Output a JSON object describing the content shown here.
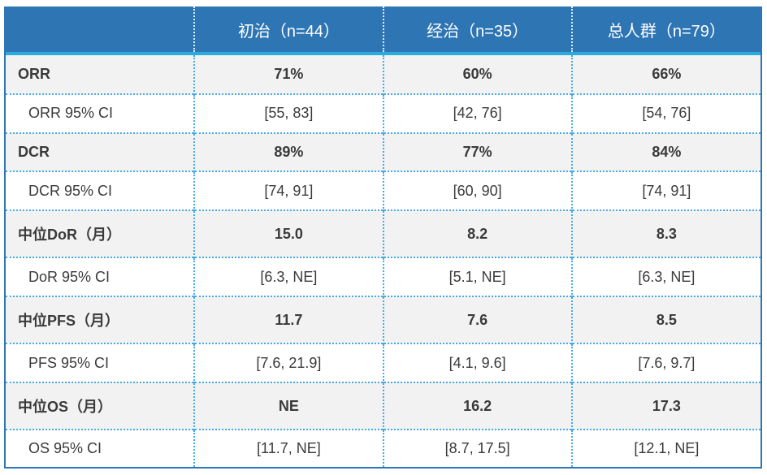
{
  "chart_data": {
    "type": "table",
    "header": {
      "corner": "",
      "columns": [
        "初治（n=44）",
        "经治（n=35）",
        "总人群（n=79）"
      ]
    },
    "rows": [
      {
        "label": "ORR",
        "values": [
          "71%",
          "60%",
          "66%"
        ],
        "type": "metric"
      },
      {
        "label": "ORR 95% CI",
        "values": [
          "[55, 83]",
          "[42, 76]",
          "[54, 76]"
        ],
        "type": "ci"
      },
      {
        "label": "DCR",
        "values": [
          "89%",
          "77%",
          "84%"
        ],
        "type": "metric"
      },
      {
        "label": "DCR 95% CI",
        "values": [
          "[74, 91]",
          "[60, 90]",
          "[74, 91]"
        ],
        "type": "ci"
      },
      {
        "label": "中位DoR（月）",
        "values": [
          "15.0",
          "8.2",
          "8.3"
        ],
        "type": "metric"
      },
      {
        "label": "DoR 95% CI",
        "values": [
          "[6.3, NE]",
          "[5.1, NE]",
          "[6.3, NE]"
        ],
        "type": "ci"
      },
      {
        "label": "中位PFS（月）",
        "values": [
          "11.7",
          "7.6",
          "8.5"
        ],
        "type": "metric"
      },
      {
        "label": "PFS 95% CI",
        "values": [
          "[7.6, 21.9]",
          "[4.1, 9.6]",
          "[7.6, 9.7]"
        ],
        "type": "ci"
      },
      {
        "label": "中位OS（月）",
        "values": [
          "NE",
          "16.2",
          "17.3"
        ],
        "type": "metric"
      },
      {
        "label": "OS 95% CI",
        "values": [
          "[11.7, NE]",
          "[8.7, 17.5]",
          "[12.1, NE]"
        ],
        "type": "ci"
      }
    ]
  },
  "colors": {
    "header_bg": "#2E75B4",
    "header_accent": "#29ABE2",
    "outer_border": "#2E75B4",
    "dotted_line": "#45AAE4",
    "header_dotted": "#DCEFFA",
    "row_shaded_bg": "#F2F2F2",
    "row_plain_bg": "#FFFFFF",
    "text": "#3A3A3A",
    "header_text": "#FFFFFF"
  }
}
